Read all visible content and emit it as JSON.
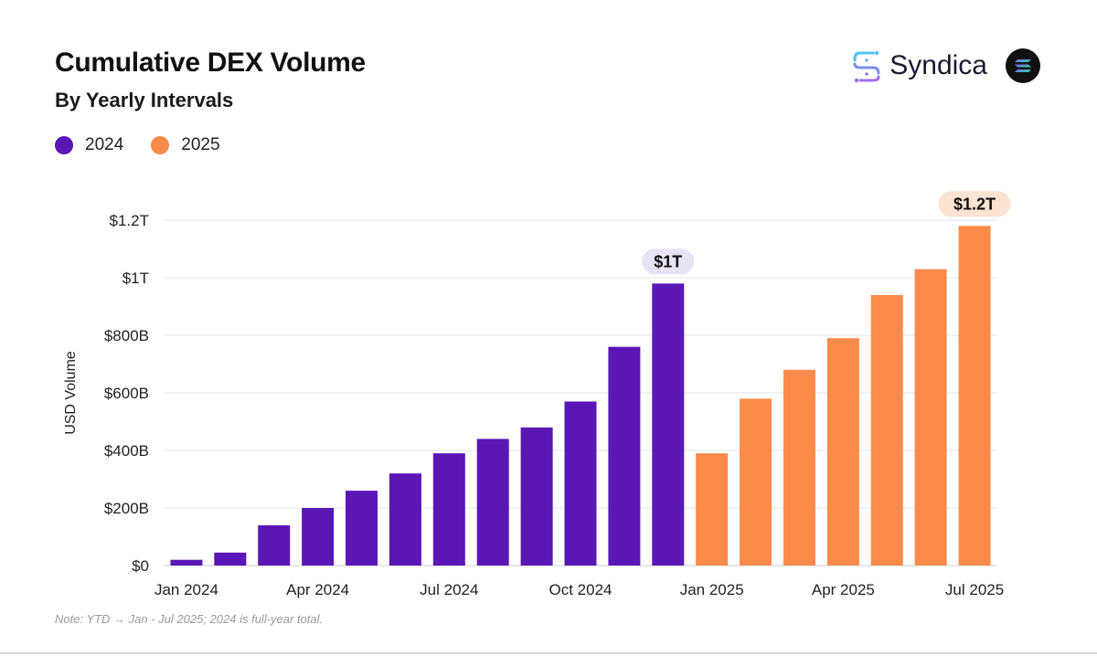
{
  "header": {
    "title": "Cumulative DEX Volume",
    "subtitle": "By Yearly Intervals"
  },
  "brand": {
    "name": "Syndica"
  },
  "legend": [
    {
      "label": "2024",
      "color": "#5b16b6"
    },
    {
      "label": "2025",
      "color": "#fb8a4b"
    }
  ],
  "chart_data": {
    "type": "bar",
    "title": "Cumulative DEX Volume",
    "subtitle": "By Yearly Intervals",
    "ylabel": "USD Volume",
    "xlabel": "",
    "ylim": [
      0,
      1.2
    ],
    "yunit": "trillion USD",
    "yticks": [
      {
        "value": 0,
        "label": "$0"
      },
      {
        "value": 0.2,
        "label": "$200B"
      },
      {
        "value": 0.4,
        "label": "$400B"
      },
      {
        "value": 0.6,
        "label": "$600B"
      },
      {
        "value": 0.8,
        "label": "$800B"
      },
      {
        "value": 1.0,
        "label": "$1T"
      },
      {
        "value": 1.2,
        "label": "$1.2T"
      }
    ],
    "grid": true,
    "legend_position": "top-left",
    "categories": [
      "Jan 2024",
      "Feb 2024",
      "Mar 2024",
      "Apr 2024",
      "May 2024",
      "Jun 2024",
      "Jul 2024",
      "Aug 2024",
      "Sep 2024",
      "Oct 2024",
      "Nov 2024",
      "Dec 2024",
      "Jan 2025",
      "Feb 2025",
      "Mar 2025",
      "Apr 2025",
      "May 2025",
      "Jun 2025",
      "Jul 2025"
    ],
    "xtick_labels": [
      {
        "index": 0,
        "label": "Jan 2024"
      },
      {
        "index": 3,
        "label": "Apr 2024"
      },
      {
        "index": 6,
        "label": "Jul 2024"
      },
      {
        "index": 9,
        "label": "Oct 2024"
      },
      {
        "index": 12,
        "label": "Jan 2025"
      },
      {
        "index": 15,
        "label": "Apr 2025"
      },
      {
        "index": 18,
        "label": "Jul 2025"
      }
    ],
    "series": [
      {
        "name": "2024",
        "color": "#5b16b6",
        "values": [
          0.02,
          0.045,
          0.14,
          0.2,
          0.26,
          0.32,
          0.39,
          0.44,
          0.48,
          0.57,
          0.76,
          0.98,
          null,
          null,
          null,
          null,
          null,
          null,
          null
        ]
      },
      {
        "name": "2025",
        "color": "#fb8a4b",
        "values": [
          null,
          null,
          null,
          null,
          null,
          null,
          null,
          null,
          null,
          null,
          null,
          null,
          0.39,
          0.58,
          0.68,
          0.79,
          0.94,
          1.03,
          1.18
        ]
      }
    ],
    "annotations": [
      {
        "index": 11,
        "label": "$1T",
        "bg": "#e8e2f5"
      },
      {
        "index": 18,
        "label": "$1.2T",
        "bg": "#fde3d2"
      }
    ]
  },
  "note": "Note: YTD → Jan - Jul 2025; 2024 is full-year total."
}
